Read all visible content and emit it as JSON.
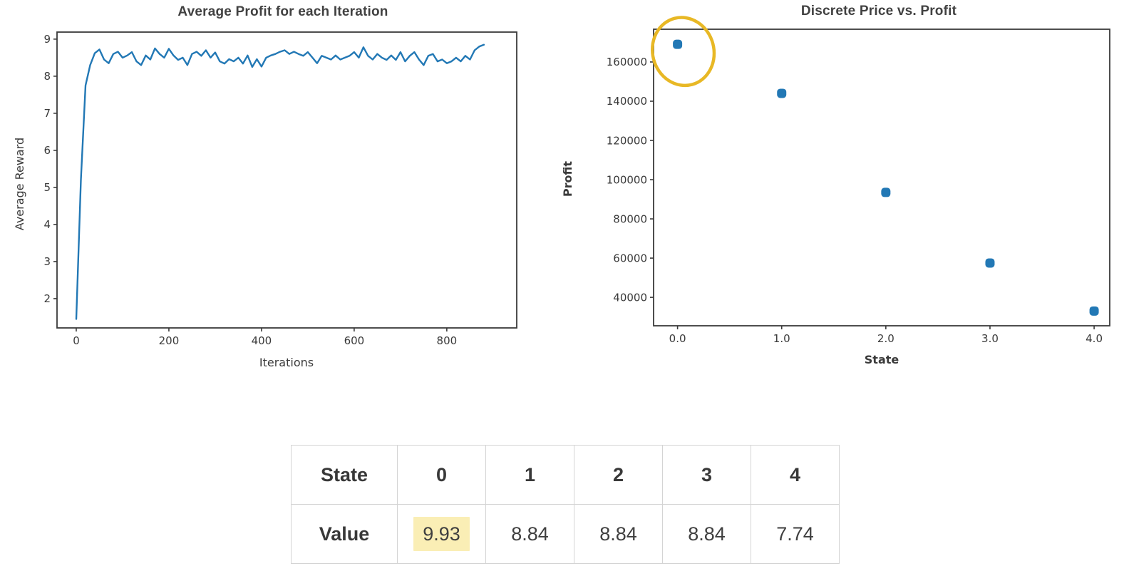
{
  "colors": {
    "accent_blue": "#2278b5",
    "annotation_gold": "#e8b825",
    "axis_gray": "#3a3a3a",
    "title_gray": "#414141",
    "table_border": "#d4d4d4",
    "highlight_yellow": "#faeeb5"
  },
  "chart_data": [
    {
      "type": "line",
      "title": "Average Profit for each Iteration",
      "xlabel": "Iterations",
      "ylabel": "Average Reward",
      "xlim": [
        -41.5,
        951
      ],
      "ylim": [
        1.21,
        9.19
      ],
      "xticks": [
        0,
        200,
        400,
        600,
        800
      ],
      "yticks": [
        2,
        3,
        4,
        5,
        6,
        7,
        8,
        9
      ],
      "grid": false,
      "legend": null,
      "x": [
        0,
        10,
        20,
        30,
        40,
        50,
        60,
        70,
        80,
        90,
        100,
        110,
        120,
        130,
        140,
        150,
        160,
        170,
        180,
        190,
        200,
        210,
        220,
        230,
        240,
        250,
        260,
        270,
        280,
        290,
        300,
        310,
        320,
        330,
        340,
        350,
        360,
        370,
        380,
        390,
        400,
        410,
        420,
        430,
        440,
        450,
        460,
        470,
        480,
        490,
        500,
        510,
        520,
        530,
        540,
        550,
        560,
        570,
        580,
        590,
        600,
        610,
        620,
        630,
        640,
        650,
        660,
        670,
        680,
        690,
        700,
        710,
        720,
        730,
        740,
        750,
        760,
        770,
        780,
        790,
        800,
        810,
        820,
        830,
        840,
        850,
        860,
        870,
        880
      ],
      "y": [
        1.45,
        5.2,
        7.75,
        8.3,
        8.62,
        8.72,
        8.45,
        8.35,
        8.6,
        8.66,
        8.5,
        8.56,
        8.65,
        8.4,
        8.3,
        8.56,
        8.45,
        8.75,
        8.6,
        8.5,
        8.74,
        8.56,
        8.44,
        8.5,
        8.3,
        8.6,
        8.66,
        8.55,
        8.7,
        8.5,
        8.64,
        8.4,
        8.34,
        8.46,
        8.4,
        8.5,
        8.34,
        8.56,
        8.25,
        8.46,
        8.26,
        8.5,
        8.56,
        8.6,
        8.66,
        8.7,
        8.6,
        8.66,
        8.6,
        8.55,
        8.65,
        8.5,
        8.35,
        8.55,
        8.5,
        8.45,
        8.56,
        8.45,
        8.5,
        8.55,
        8.65,
        8.5,
        8.78,
        8.55,
        8.45,
        8.6,
        8.5,
        8.44,
        8.56,
        8.44,
        8.65,
        8.4,
        8.55,
        8.65,
        8.45,
        8.3,
        8.55,
        8.6,
        8.4,
        8.45,
        8.35,
        8.4,
        8.5,
        8.4,
        8.55,
        8.45,
        8.7,
        8.8,
        8.85
      ]
    },
    {
      "type": "scatter",
      "title": "Discrete Price vs. Profit",
      "xlabel": "State",
      "ylabel": "Profit",
      "xlim": [
        -0.23,
        4.15
      ],
      "ylim": [
        25500,
        176700
      ],
      "xticks": [
        0,
        1,
        2,
        3,
        4
      ],
      "xtick_labels": [
        "0.0",
        "1.0",
        "2.0",
        "3.0",
        "4.0"
      ],
      "yticks": [
        40000,
        60000,
        80000,
        100000,
        120000,
        140000,
        160000
      ],
      "grid": false,
      "legend": null,
      "x": [
        0,
        1,
        2,
        3,
        4
      ],
      "y": [
        169000,
        144000,
        93500,
        57500,
        33000
      ],
      "annotation": {
        "shape": "ellipse",
        "around_point_index": 0,
        "color": "#e8b825"
      }
    }
  ],
  "table": {
    "rows": [
      {
        "header": "State",
        "cells": [
          "0",
          "1",
          "2",
          "3",
          "4"
        ]
      },
      {
        "header": "Value",
        "cells": [
          "9.93",
          "8.84",
          "8.84",
          "8.84",
          "7.74"
        ],
        "highlight_index": 0
      }
    ]
  }
}
